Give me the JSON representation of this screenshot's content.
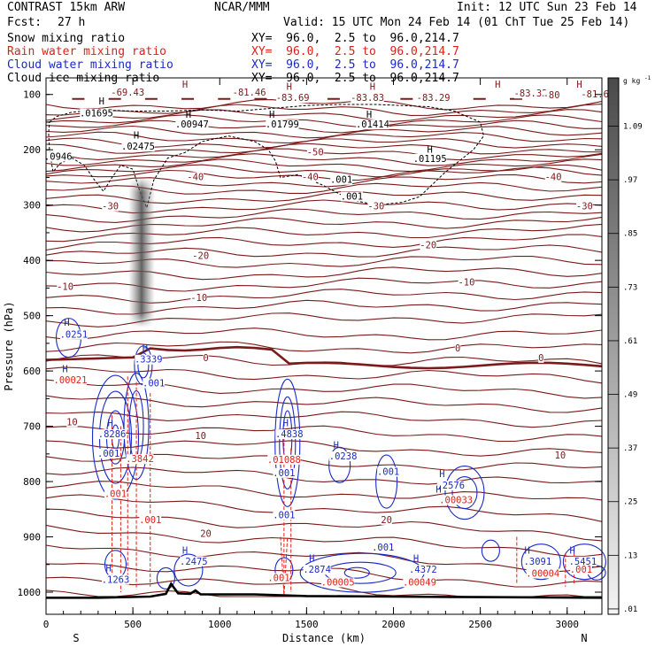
{
  "header": {
    "model_title": "CONTRAST 15km ARW",
    "center": "NCAR/MMM",
    "init": "Init: 12 UTC Sun 23 Feb 14",
    "fcst_label": "Fcst:",
    "fcst_value": "27 h",
    "valid": "Valid: 15 UTC Mon 24 Feb 14 (01 ChT Tue 25 Feb 14)"
  },
  "fields": [
    {
      "name": "Snow mixing ratio",
      "xy": "XY=  96.0,  2.5 to  96.0,214.7",
      "color": "#000000"
    },
    {
      "name": "Rain water mixing ratio",
      "xy": "XY=  96.0,  2.5 to  96.0,214.7",
      "color": "#e0201a"
    },
    {
      "name": "Cloud water mixing ratio",
      "xy": "XY=  96.0,  2.5 to  96.0,214.7",
      "color": "#1a2ac8"
    },
    {
      "name": "Cloud ice mixing ratio",
      "xy": "XY=  96.0,  2.5 to  96.0,214.7",
      "color": "#000000"
    }
  ],
  "colors": {
    "temperature": "#7a1a1a",
    "rain": "#e0201a",
    "cloud_water": "#1a2ac8",
    "cloud_ice": "#000000",
    "terrain": "#000000"
  },
  "chart_data": {
    "type": "contour cross-section",
    "xlabel": "Distance (km)",
    "ylabel": "Pressure (hPa)",
    "xlim": [
      0,
      3200
    ],
    "ylim": [
      1040,
      70
    ],
    "x_ticks": [
      0,
      500,
      1000,
      1500,
      2000,
      2500,
      3000
    ],
    "y_ticks": [
      100,
      200,
      300,
      400,
      500,
      600,
      700,
      800,
      900,
      1000
    ],
    "end_labels": {
      "left": "S",
      "right": "N"
    },
    "colorbar": {
      "unit": "g kg",
      "unit_exp": "-1",
      "labels": [
        "1.09",
        ".97",
        ".85",
        ".73",
        ".61",
        ".49",
        ".37",
        ".25",
        ".13",
        ".01"
      ]
    },
    "temperature_contours": [
      {
        "label": "-69.43",
        "x": 470,
        "p": 102
      },
      {
        "label": "-81.46",
        "x": 1170,
        "p": 102
      },
      {
        "label": "-83.69",
        "x": 1420,
        "p": 112
      },
      {
        "label": "-83.83",
        "x": 1850,
        "p": 112
      },
      {
        "label": "-83.29",
        "x": 2230,
        "p": 112
      },
      {
        "label": "-83.32",
        "x": 2790,
        "p": 104
      },
      {
        "label": "-80",
        "x": 2910,
        "p": 107
      },
      {
        "label": "-81.6",
        "x": 3160,
        "p": 105
      },
      {
        "label": "-50",
        "x": 1550,
        "p": 210
      },
      {
        "label": "-40",
        "x": 860,
        "p": 255
      },
      {
        "label": "-40",
        "x": 1520,
        "p": 255
      },
      {
        "label": "-40",
        "x": 2920,
        "p": 255
      },
      {
        "label": "-30",
        "x": 370,
        "p": 308
      },
      {
        "label": "-30",
        "x": 1900,
        "p": 308
      },
      {
        "label": "-30",
        "x": 3100,
        "p": 308
      },
      {
        "label": "-20",
        "x": 890,
        "p": 397
      },
      {
        "label": "-20",
        "x": 2200,
        "p": 378
      },
      {
        "label": "-10",
        "x": 110,
        "p": 453
      },
      {
        "label": "-10",
        "x": 880,
        "p": 473
      },
      {
        "label": "-10",
        "x": 2420,
        "p": 445
      },
      {
        "label": "0",
        "x": 920,
        "p": 582
      },
      {
        "label": "0",
        "x": 2370,
        "p": 565
      },
      {
        "label": "0",
        "x": 2850,
        "p": 582
      },
      {
        "label": "10",
        "x": 150,
        "p": 698
      },
      {
        "label": "10",
        "x": 890,
        "p": 723
      },
      {
        "label": "10",
        "x": 2960,
        "p": 758
      },
      {
        "label": "20",
        "x": 920,
        "p": 900
      },
      {
        "label": "20",
        "x": 1960,
        "p": 875
      }
    ],
    "cloud_ice_values": [
      {
        "label": ".01695",
        "x": 290,
        "p": 140
      },
      {
        "label": ".00947",
        "x": 840,
        "p": 160
      },
      {
        "label": ".01799",
        "x": 1360,
        "p": 160
      },
      {
        "label": ".01414",
        "x": 1880,
        "p": 160
      },
      {
        "label": ".02475",
        "x": 530,
        "p": 200
      },
      {
        "label": ".0946",
        "x": 70,
        "p": 218
      },
      {
        "label": ".01195",
        "x": 2210,
        "p": 222
      },
      {
        "label": ".001",
        "x": 1700,
        "p": 260
      },
      {
        "label": ".001",
        "x": 1760,
        "p": 290
      }
    ],
    "cloud_water_values": [
      {
        "label": ".0251",
        "x": 160,
        "p": 540
      },
      {
        "label": ".3339",
        "x": 590,
        "p": 585
      },
      {
        "label": ".001",
        "x": 620,
        "p": 628
      },
      {
        "label": ".8286",
        "x": 380,
        "p": 720
      },
      {
        "label": ".001",
        "x": 360,
        "p": 755
      },
      {
        "label": ".4838",
        "x": 1400,
        "p": 720
      },
      {
        "label": ".0238",
        "x": 1710,
        "p": 760
      },
      {
        "label": ".001",
        "x": 1970,
        "p": 788
      },
      {
        "label": ".2576",
        "x": 2330,
        "p": 813
      },
      {
        "label": ".001",
        "x": 1370,
        "p": 790
      },
      {
        "label": ".001",
        "x": 1370,
        "p": 866
      },
      {
        "label": ".001",
        "x": 1940,
        "p": 925
      },
      {
        "label": ".2475",
        "x": 850,
        "p": 950
      },
      {
        "label": ".1263",
        "x": 400,
        "p": 983
      },
      {
        "label": ".2874",
        "x": 1560,
        "p": 965
      },
      {
        "label": ".4372",
        "x": 2170,
        "p": 965
      },
      {
        "label": ".3091",
        "x": 2830,
        "p": 950
      },
      {
        "label": ".5451",
        "x": 3090,
        "p": 950
      }
    ],
    "rain_values": [
      {
        "label": ".00021",
        "x": 140,
        "p": 622
      },
      {
        "label": ".3842",
        "x": 540,
        "p": 765
      },
      {
        "label": ".001",
        "x": 400,
        "p": 828
      },
      {
        "label": ".001",
        "x": 600,
        "p": 875
      },
      {
        "label": ".01088",
        "x": 1370,
        "p": 766
      },
      {
        "label": ".00033",
        "x": 2360,
        "p": 839
      },
      {
        "label": ".001",
        "x": 1340,
        "p": 980
      },
      {
        "label": ".00005",
        "x": 1680,
        "p": 988
      },
      {
        "label": ".00049",
        "x": 2150,
        "p": 988
      },
      {
        "label": ".00004",
        "x": 2860,
        "p": 972
      },
      {
        "label": ".001",
        "x": 3080,
        "p": 965
      }
    ],
    "max_marks": [
      {
        "x": 320,
        "p": 118
      },
      {
        "x": 820,
        "p": 142
      },
      {
        "x": 1300,
        "p": 142
      },
      {
        "x": 1860,
        "p": 142
      },
      {
        "x": 520,
        "p": 180
      },
      {
        "x": 2210,
        "p": 205
      },
      {
        "x": 800,
        "p": 88
      },
      {
        "x": 1400,
        "p": 92
      },
      {
        "x": 1880,
        "p": 92
      },
      {
        "x": 2600,
        "p": 88
      },
      {
        "x": 3070,
        "p": 88
      },
      {
        "x": 120,
        "p": 518
      },
      {
        "x": 570,
        "p": 565
      },
      {
        "x": 110,
        "p": 602
      },
      {
        "x": 370,
        "p": 700
      },
      {
        "x": 1380,
        "p": 700
      },
      {
        "x": 1670,
        "p": 740
      },
      {
        "x": 2280,
        "p": 792
      },
      {
        "x": 2260,
        "p": 820
      },
      {
        "x": 800,
        "p": 930
      },
      {
        "x": 360,
        "p": 962
      },
      {
        "x": 1530,
        "p": 945
      },
      {
        "x": 2130,
        "p": 945
      },
      {
        "x": 2770,
        "p": 930
      },
      {
        "x": 3030,
        "p": 930
      }
    ],
    "terrain_surface": [
      [
        0,
        1010
      ],
      [
        300,
        1010
      ],
      [
        600,
        1008
      ],
      [
        690,
        1003
      ],
      [
        720,
        985
      ],
      [
        760,
        1002
      ],
      [
        830,
        1003
      ],
      [
        860,
        997
      ],
      [
        890,
        1004
      ],
      [
        1200,
        1004
      ],
      [
        1500,
        1007
      ],
      [
        2000,
        1008
      ],
      [
        2500,
        1009
      ],
      [
        3200,
        1010
      ]
    ]
  }
}
